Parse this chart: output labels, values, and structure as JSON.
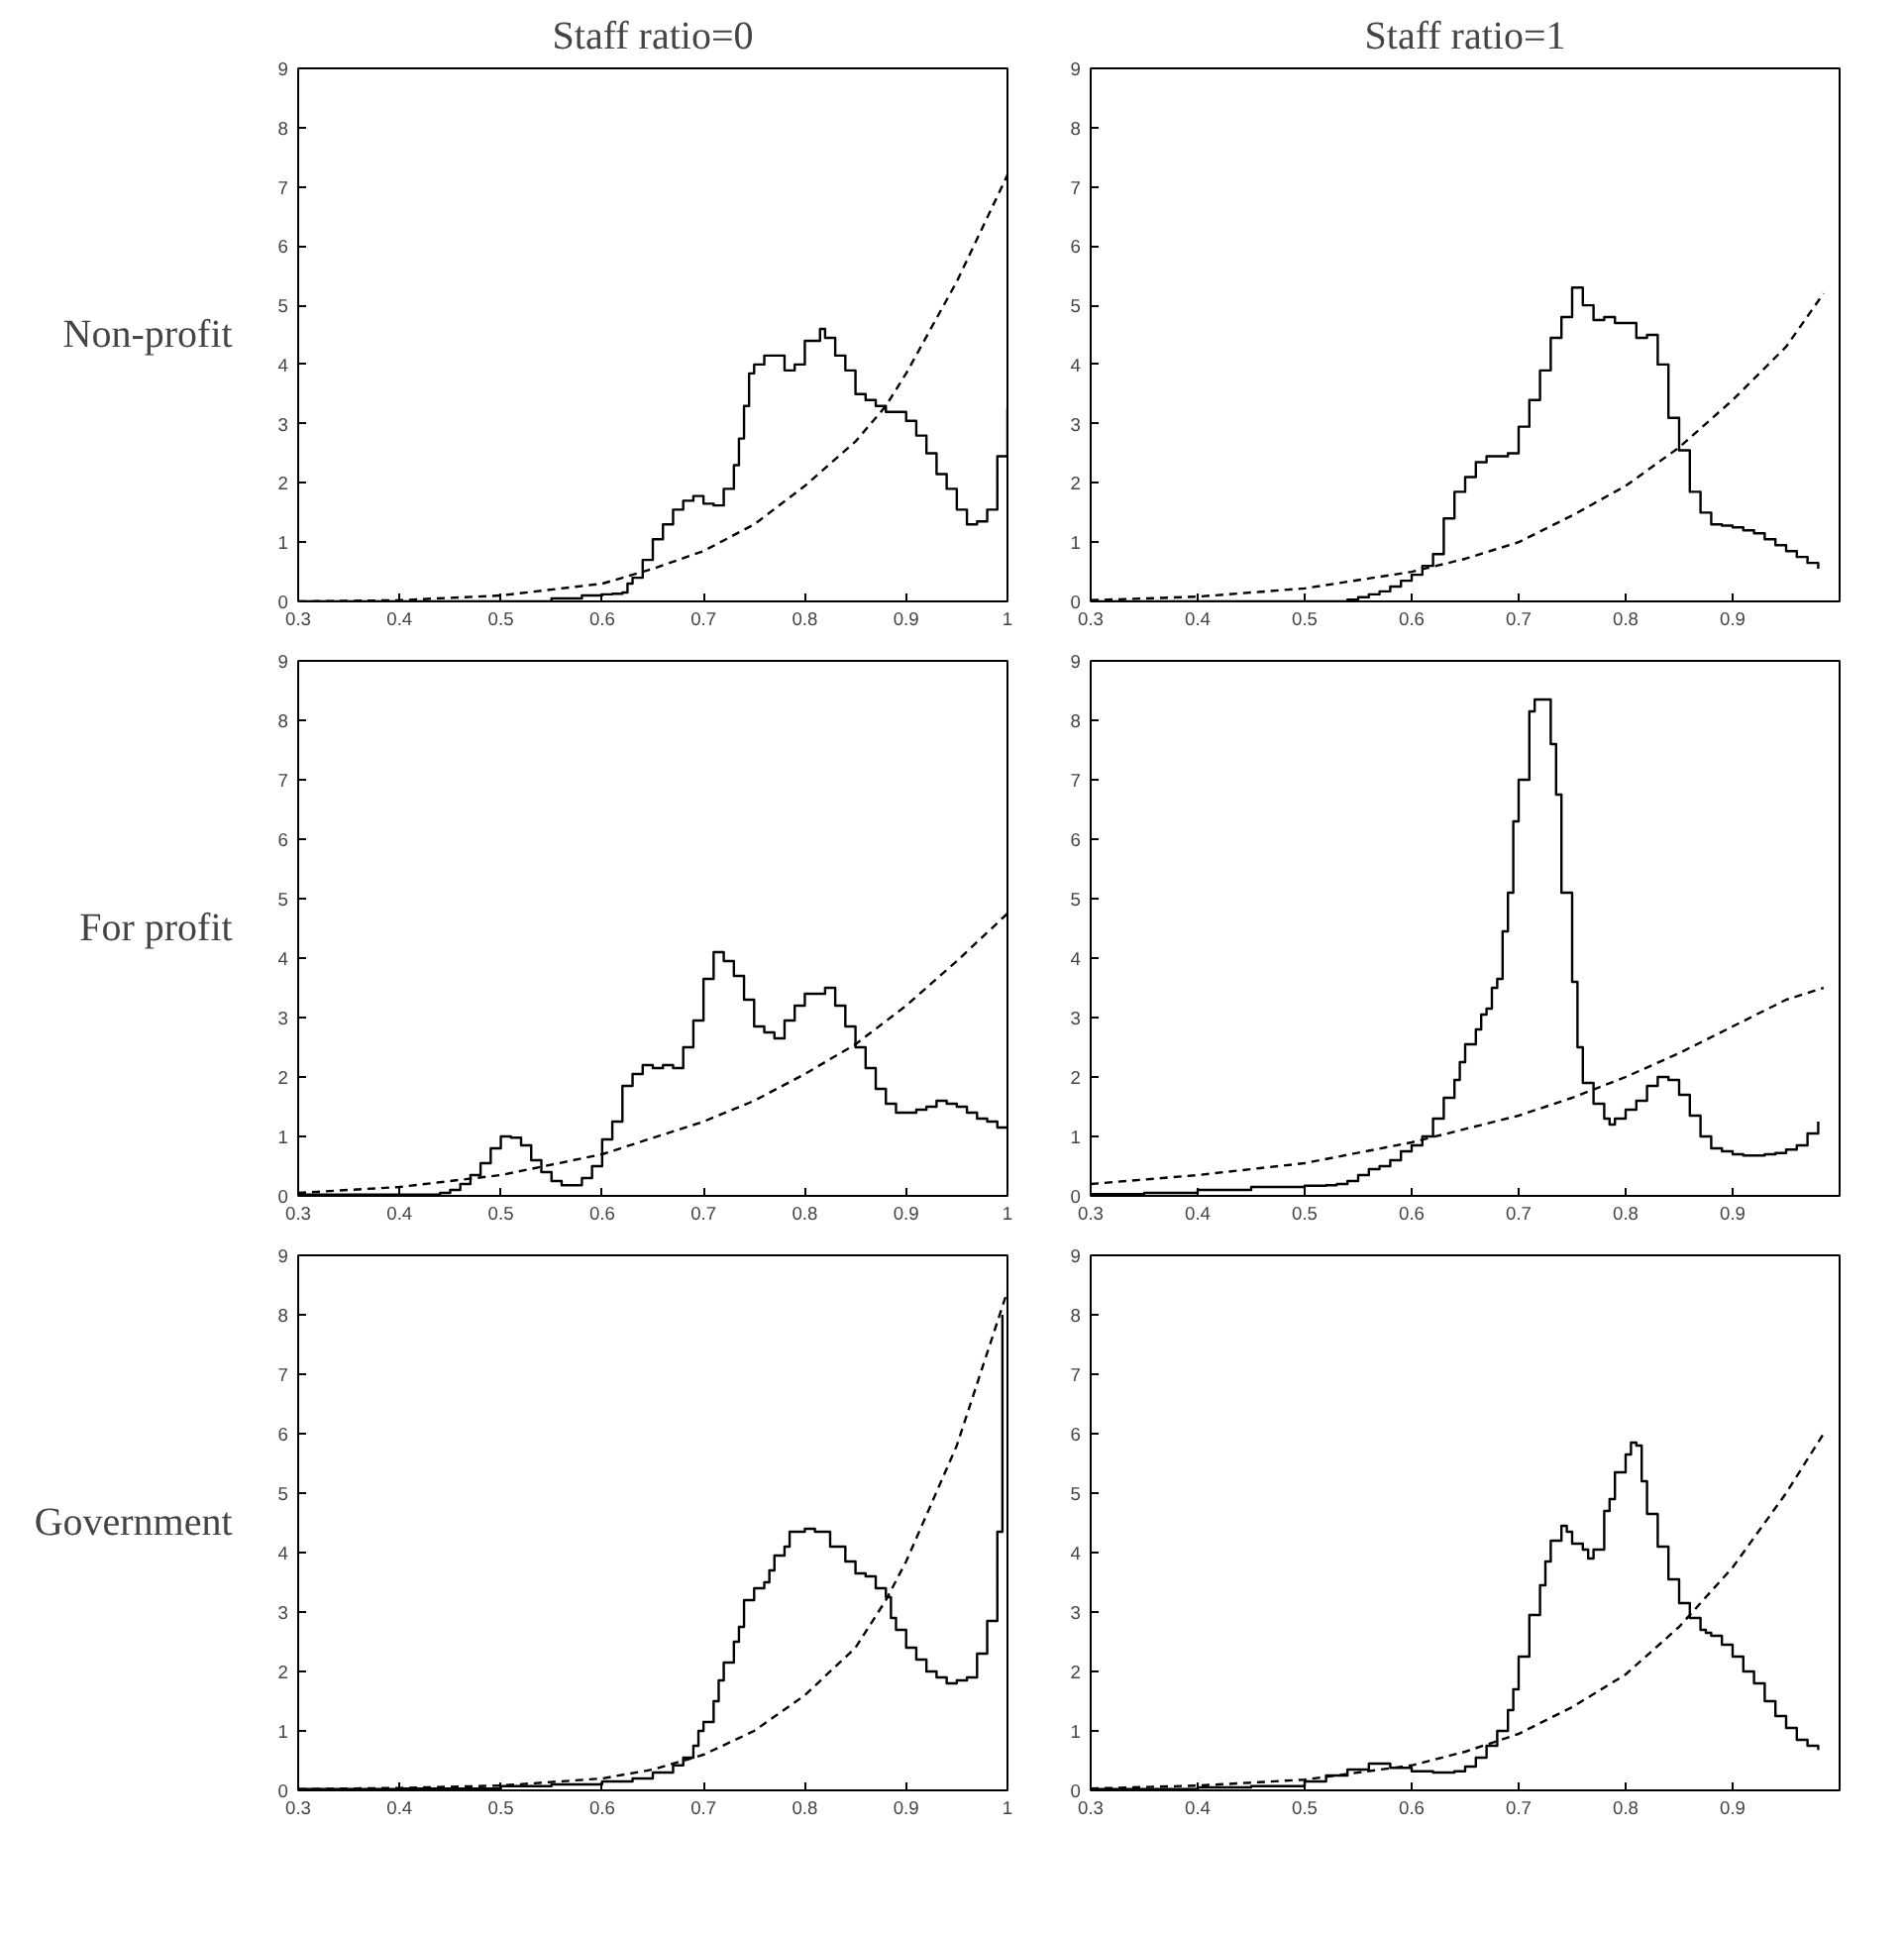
{
  "chart_data": [
    {
      "type": "step",
      "title": "Staff ratio=0",
      "ylabel": "Non-profit",
      "xlim": [
        0.3,
        1
      ],
      "ylim": [
        0,
        9
      ],
      "xticks": [
        0.3,
        0.4,
        0.5,
        0.6,
        0.7,
        0.8,
        0.9,
        1
      ],
      "yticks": [
        0,
        1,
        2,
        3,
        4,
        5,
        6,
        7,
        8,
        9
      ],
      "series": [
        {
          "color": "#000000",
          "x": [
            0.3,
            0.4,
            0.5,
            0.55,
            0.58,
            0.6,
            0.61,
            0.62,
            0.625,
            0.63,
            0.64,
            0.65,
            0.66,
            0.67,
            0.68,
            0.69,
            0.7,
            0.71,
            0.72,
            0.73,
            0.735,
            0.74,
            0.745,
            0.75,
            0.76,
            0.77,
            0.78,
            0.79,
            0.8,
            0.81,
            0.815,
            0.82,
            0.83,
            0.84,
            0.85,
            0.86,
            0.87,
            0.88,
            0.89,
            0.9,
            0.91,
            0.92,
            0.93,
            0.94,
            0.95,
            0.96,
            0.97,
            0.98,
            0.99,
            1.0
          ],
          "values": [
            0,
            0,
            0,
            0.05,
            0.1,
            0.12,
            0.13,
            0.15,
            0.3,
            0.4,
            0.7,
            1.05,
            1.3,
            1.55,
            1.7,
            1.78,
            1.65,
            1.62,
            1.9,
            2.3,
            2.75,
            3.3,
            3.85,
            4.0,
            4.15,
            4.15,
            3.9,
            4.0,
            4.4,
            4.4,
            4.6,
            4.45,
            4.15,
            3.9,
            3.5,
            3.4,
            3.3,
            3.2,
            3.2,
            3.05,
            2.8,
            2.5,
            2.15,
            1.9,
            1.55,
            1.3,
            1.35,
            1.55,
            2.45,
            3.25
          ]
        },
        {
          "type": "line",
          "line_style": "dashed",
          "color": "#000000",
          "x": [
            0.3,
            0.4,
            0.5,
            0.6,
            0.65,
            0.7,
            0.75,
            0.8,
            0.85,
            0.88,
            0.9,
            0.95,
            1.0
          ],
          "values": [
            0,
            0.02,
            0.1,
            0.3,
            0.55,
            0.85,
            1.3,
            1.95,
            2.7,
            3.3,
            3.85,
            5.4,
            7.2
          ]
        }
      ]
    },
    {
      "type": "step",
      "title": "Staff ratio=1",
      "xlim": [
        0.3,
        1
      ],
      "ylim": [
        0,
        9
      ],
      "xticks": [
        0.3,
        0.4,
        0.5,
        0.6,
        0.7,
        0.8,
        0.9
      ],
      "yticks": [
        0,
        1,
        2,
        3,
        4,
        5,
        6,
        7,
        8,
        9
      ],
      "series": [
        {
          "color": "#000000",
          "x": [
            0.3,
            0.4,
            0.5,
            0.53,
            0.54,
            0.55,
            0.56,
            0.57,
            0.58,
            0.59,
            0.6,
            0.61,
            0.62,
            0.63,
            0.64,
            0.65,
            0.66,
            0.67,
            0.68,
            0.69,
            0.7,
            0.71,
            0.72,
            0.73,
            0.74,
            0.75,
            0.76,
            0.77,
            0.78,
            0.79,
            0.8,
            0.81,
            0.82,
            0.83,
            0.84,
            0.85,
            0.86,
            0.87,
            0.88,
            0.89,
            0.9,
            0.91,
            0.92,
            0.93,
            0.94,
            0.95,
            0.96,
            0.97,
            0.98
          ],
          "values": [
            0,
            0,
            0,
            0,
            0.03,
            0.07,
            0.12,
            0.17,
            0.25,
            0.35,
            0.45,
            0.6,
            0.8,
            1.4,
            1.85,
            2.1,
            2.35,
            2.45,
            2.45,
            2.5,
            2.95,
            3.4,
            3.9,
            4.45,
            4.8,
            5.3,
            5.0,
            4.75,
            4.8,
            4.7,
            4.7,
            4.45,
            4.5,
            4.0,
            3.1,
            2.55,
            1.85,
            1.5,
            1.3,
            1.28,
            1.25,
            1.2,
            1.15,
            1.05,
            0.95,
            0.85,
            0.75,
            0.65,
            0.55
          ]
        },
        {
          "type": "line",
          "line_style": "dashed",
          "color": "#000000",
          "x": [
            0.3,
            0.4,
            0.5,
            0.6,
            0.65,
            0.7,
            0.75,
            0.8,
            0.85,
            0.9,
            0.95,
            0.985
          ],
          "values": [
            0.02,
            0.08,
            0.22,
            0.5,
            0.72,
            1.0,
            1.45,
            1.95,
            2.6,
            3.4,
            4.3,
            5.2
          ]
        }
      ]
    },
    {
      "type": "step",
      "ylabel": "For profit",
      "xlim": [
        0.3,
        1
      ],
      "ylim": [
        0,
        9
      ],
      "xticks": [
        0.3,
        0.4,
        0.5,
        0.6,
        0.7,
        0.8,
        0.9,
        1
      ],
      "yticks": [
        0,
        1,
        2,
        3,
        4,
        5,
        6,
        7,
        8,
        9
      ],
      "series": [
        {
          "color": "#000000",
          "x": [
            0.3,
            0.43,
            0.44,
            0.45,
            0.46,
            0.47,
            0.48,
            0.49,
            0.5,
            0.51,
            0.52,
            0.53,
            0.54,
            0.55,
            0.56,
            0.57,
            0.58,
            0.59,
            0.6,
            0.61,
            0.62,
            0.63,
            0.64,
            0.65,
            0.66,
            0.67,
            0.68,
            0.69,
            0.7,
            0.71,
            0.72,
            0.73,
            0.74,
            0.75,
            0.76,
            0.77,
            0.78,
            0.79,
            0.8,
            0.81,
            0.82,
            0.83,
            0.84,
            0.85,
            0.86,
            0.87,
            0.88,
            0.89,
            0.9,
            0.91,
            0.92,
            0.93,
            0.94,
            0.95,
            0.96,
            0.97,
            0.98,
            0.99,
            1.0
          ],
          "values": [
            0.02,
            0.02,
            0.05,
            0.1,
            0.2,
            0.35,
            0.55,
            0.8,
            1.0,
            0.98,
            0.85,
            0.6,
            0.4,
            0.25,
            0.18,
            0.18,
            0.3,
            0.5,
            0.95,
            1.25,
            1.85,
            2.05,
            2.2,
            2.15,
            2.2,
            2.15,
            2.5,
            2.95,
            3.65,
            4.1,
            3.95,
            3.7,
            3.3,
            2.85,
            2.75,
            2.65,
            2.95,
            3.2,
            3.4,
            3.4,
            3.5,
            3.2,
            2.85,
            2.5,
            2.15,
            1.8,
            1.55,
            1.4,
            1.4,
            1.45,
            1.5,
            1.6,
            1.55,
            1.5,
            1.4,
            1.3,
            1.25,
            1.15,
            1.12
          ]
        },
        {
          "type": "line",
          "line_style": "dashed",
          "color": "#000000",
          "x": [
            0.3,
            0.4,
            0.5,
            0.6,
            0.7,
            0.75,
            0.8,
            0.85,
            0.9,
            0.95,
            1.0
          ],
          "values": [
            0.05,
            0.15,
            0.35,
            0.7,
            1.25,
            1.6,
            2.05,
            2.55,
            3.2,
            3.95,
            4.75
          ]
        }
      ]
    },
    {
      "type": "step",
      "xlim": [
        0.3,
        1
      ],
      "ylim": [
        0,
        9
      ],
      "xticks": [
        0.3,
        0.4,
        0.5,
        0.6,
        0.7,
        0.8,
        0.9
      ],
      "yticks": [
        0,
        1,
        2,
        3,
        4,
        5,
        6,
        7,
        8,
        9
      ],
      "series": [
        {
          "color": "#000000",
          "x": [
            0.3,
            0.35,
            0.4,
            0.45,
            0.5,
            0.52,
            0.53,
            0.54,
            0.55,
            0.56,
            0.57,
            0.58,
            0.59,
            0.6,
            0.61,
            0.62,
            0.63,
            0.64,
            0.645,
            0.65,
            0.66,
            0.665,
            0.67,
            0.675,
            0.68,
            0.685,
            0.69,
            0.695,
            0.7,
            0.71,
            0.715,
            0.72,
            0.73,
            0.735,
            0.74,
            0.75,
            0.755,
            0.76,
            0.77,
            0.78,
            0.785,
            0.79,
            0.8,
            0.81,
            0.82,
            0.83,
            0.84,
            0.85,
            0.86,
            0.87,
            0.88,
            0.89,
            0.9,
            0.91,
            0.92,
            0.93,
            0.94,
            0.95,
            0.96,
            0.97,
            0.98
          ],
          "values": [
            0.03,
            0.05,
            0.1,
            0.15,
            0.17,
            0.18,
            0.2,
            0.25,
            0.35,
            0.45,
            0.5,
            0.6,
            0.75,
            0.85,
            1.0,
            1.3,
            1.65,
            1.95,
            2.25,
            2.55,
            2.8,
            3.05,
            3.15,
            3.5,
            3.65,
            4.45,
            5.1,
            6.3,
            7.0,
            8.15,
            8.35,
            8.35,
            7.6,
            6.75,
            5.1,
            3.6,
            2.5,
            1.9,
            1.55,
            1.3,
            1.2,
            1.3,
            1.45,
            1.6,
            1.85,
            2.0,
            1.95,
            1.7,
            1.35,
            1.0,
            0.8,
            0.75,
            0.7,
            0.68,
            0.68,
            0.7,
            0.72,
            0.78,
            0.85,
            1.05,
            1.25
          ]
        },
        {
          "type": "line",
          "line_style": "dashed",
          "color": "#000000",
          "x": [
            0.3,
            0.4,
            0.5,
            0.6,
            0.7,
            0.75,
            0.8,
            0.85,
            0.9,
            0.95,
            0.985
          ],
          "values": [
            0.2,
            0.35,
            0.55,
            0.9,
            1.35,
            1.65,
            2.0,
            2.4,
            2.85,
            3.3,
            3.5
          ]
        }
      ]
    },
    {
      "type": "step",
      "ylabel": "Government",
      "xlim": [
        0.3,
        1
      ],
      "ylim": [
        0,
        9
      ],
      "xticks": [
        0.3,
        0.4,
        0.5,
        0.6,
        0.7,
        0.8,
        0.9,
        1
      ],
      "yticks": [
        0,
        1,
        2,
        3,
        4,
        5,
        6,
        7,
        8,
        9
      ],
      "series": [
        {
          "color": "#000000",
          "x": [
            0.3,
            0.4,
            0.5,
            0.55,
            0.6,
            0.63,
            0.65,
            0.67,
            0.68,
            0.69,
            0.695,
            0.7,
            0.71,
            0.715,
            0.72,
            0.73,
            0.735,
            0.74,
            0.75,
            0.76,
            0.765,
            0.77,
            0.78,
            0.785,
            0.8,
            0.81,
            0.825,
            0.84,
            0.85,
            0.86,
            0.87,
            0.88,
            0.885,
            0.89,
            0.9,
            0.91,
            0.92,
            0.93,
            0.94,
            0.95,
            0.96,
            0.97,
            0.98,
            0.99,
            0.995
          ],
          "values": [
            0.02,
            0.03,
            0.07,
            0.1,
            0.15,
            0.2,
            0.3,
            0.42,
            0.55,
            0.75,
            1.0,
            1.15,
            1.5,
            1.85,
            2.15,
            2.5,
            2.75,
            3.2,
            3.4,
            3.5,
            3.7,
            3.95,
            4.1,
            4.35,
            4.4,
            4.35,
            4.1,
            3.85,
            3.65,
            3.6,
            3.4,
            3.25,
            2.9,
            2.7,
            2.4,
            2.2,
            2.0,
            1.9,
            1.8,
            1.85,
            1.9,
            2.3,
            2.85,
            4.35,
            8.0
          ]
        },
        {
          "type": "line",
          "line_style": "dashed",
          "color": "#000000",
          "x": [
            0.3,
            0.4,
            0.5,
            0.6,
            0.65,
            0.7,
            0.75,
            0.8,
            0.85,
            0.88,
            0.9,
            0.95,
            1.0
          ],
          "values": [
            0.02,
            0.04,
            0.08,
            0.2,
            0.35,
            0.6,
            1.0,
            1.6,
            2.4,
            3.2,
            3.85,
            5.8,
            8.4
          ]
        }
      ]
    },
    {
      "type": "step",
      "xlim": [
        0.3,
        1
      ],
      "ylim": [
        0,
        9
      ],
      "xticks": [
        0.3,
        0.4,
        0.5,
        0.6,
        0.7,
        0.8,
        0.9
      ],
      "yticks": [
        0,
        1,
        2,
        3,
        4,
        5,
        6,
        7,
        8,
        9
      ],
      "series": [
        {
          "color": "#000000",
          "x": [
            0.3,
            0.4,
            0.45,
            0.5,
            0.52,
            0.54,
            0.55,
            0.56,
            0.58,
            0.6,
            0.62,
            0.64,
            0.65,
            0.66,
            0.67,
            0.68,
            0.69,
            0.695,
            0.7,
            0.71,
            0.72,
            0.725,
            0.73,
            0.74,
            0.745,
            0.75,
            0.76,
            0.765,
            0.77,
            0.78,
            0.785,
            0.79,
            0.8,
            0.805,
            0.81,
            0.815,
            0.82,
            0.83,
            0.84,
            0.85,
            0.86,
            0.87,
            0.875,
            0.88,
            0.89,
            0.9,
            0.91,
            0.92,
            0.93,
            0.94,
            0.95,
            0.96,
            0.97,
            0.98
          ],
          "values": [
            0.02,
            0.05,
            0.07,
            0.15,
            0.25,
            0.35,
            0.35,
            0.45,
            0.38,
            0.32,
            0.3,
            0.32,
            0.4,
            0.55,
            0.75,
            1.0,
            1.35,
            1.7,
            2.25,
            2.95,
            3.45,
            3.85,
            4.2,
            4.45,
            4.35,
            4.15,
            4.05,
            3.9,
            4.05,
            4.7,
            4.9,
            5.35,
            5.65,
            5.85,
            5.8,
            5.2,
            4.65,
            4.1,
            3.55,
            3.15,
            2.9,
            2.7,
            2.65,
            2.6,
            2.45,
            2.25,
            2.0,
            1.8,
            1.5,
            1.25,
            1.05,
            0.85,
            0.75,
            0.68
          ]
        },
        {
          "type": "line",
          "line_style": "dashed",
          "color": "#000000",
          "x": [
            0.3,
            0.4,
            0.5,
            0.6,
            0.65,
            0.7,
            0.75,
            0.8,
            0.85,
            0.9,
            0.95,
            0.985
          ],
          "values": [
            0.03,
            0.08,
            0.18,
            0.42,
            0.65,
            0.95,
            1.4,
            1.95,
            2.75,
            3.75,
            5.0,
            6.0
          ]
        }
      ]
    }
  ]
}
